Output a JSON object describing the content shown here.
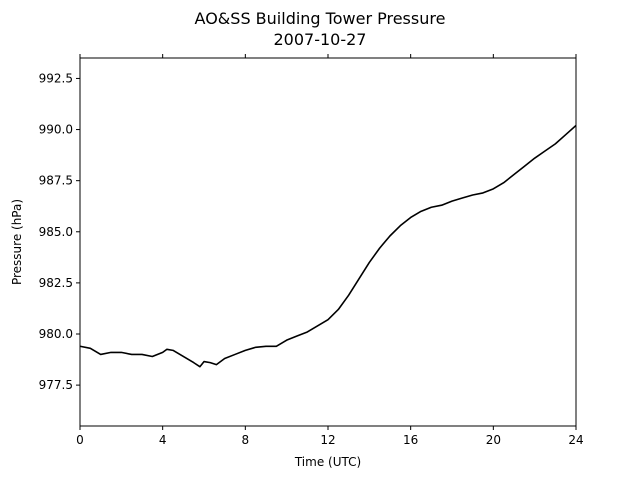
{
  "chart_data": {
    "type": "line",
    "title": "AO&SS Building Tower Pressure",
    "subtitle": "2007-10-27",
    "xlabel": "Time (UTC)",
    "ylabel": "Pressure (hPa)",
    "xlim": [
      0,
      24
    ],
    "ylim": [
      975.5,
      993.5
    ],
    "xticks": [
      0,
      4,
      8,
      12,
      16,
      20,
      24
    ],
    "xtick_labels": [
      "0",
      "4",
      "8",
      "12",
      "16",
      "20",
      "24"
    ],
    "yticks": [
      977.5,
      980.0,
      982.5,
      985.0,
      987.5,
      990.0,
      992.5
    ],
    "ytick_labels": [
      "977.5",
      "980.0",
      "982.5",
      "985.0",
      "987.5",
      "990.0",
      "992.5"
    ],
    "grid": false,
    "series": [
      {
        "color": "#000000",
        "x": [
          0,
          0.5,
          1,
          1.5,
          2,
          2.5,
          3,
          3.5,
          4,
          4.2,
          4.5,
          5,
          5.5,
          5.8,
          6,
          6.3,
          6.6,
          7,
          7.5,
          8,
          8.5,
          9,
          9.5,
          10,
          10.5,
          11,
          11.5,
          12,
          12.5,
          13,
          13.5,
          14,
          14.5,
          15,
          15.5,
          16,
          16.5,
          17,
          17.5,
          18,
          18.5,
          19,
          19.5,
          20,
          20.5,
          21,
          21.5,
          22,
          22.5,
          23,
          23.5,
          24
        ],
        "y": [
          979.4,
          979.3,
          979.0,
          979.1,
          979.1,
          979.0,
          979.0,
          978.9,
          979.1,
          979.25,
          979.2,
          978.9,
          978.6,
          978.4,
          978.65,
          978.6,
          978.5,
          978.8,
          979.0,
          979.2,
          979.35,
          979.4,
          979.4,
          979.7,
          979.9,
          980.1,
          980.4,
          980.7,
          981.2,
          981.9,
          982.7,
          983.5,
          984.2,
          984.8,
          985.3,
          985.7,
          986.0,
          986.2,
          986.3,
          986.5,
          986.65,
          986.8,
          986.9,
          987.1,
          987.4,
          987.8,
          988.2,
          988.6,
          988.95,
          989.3,
          989.75,
          990.2
        ]
      }
    ]
  }
}
